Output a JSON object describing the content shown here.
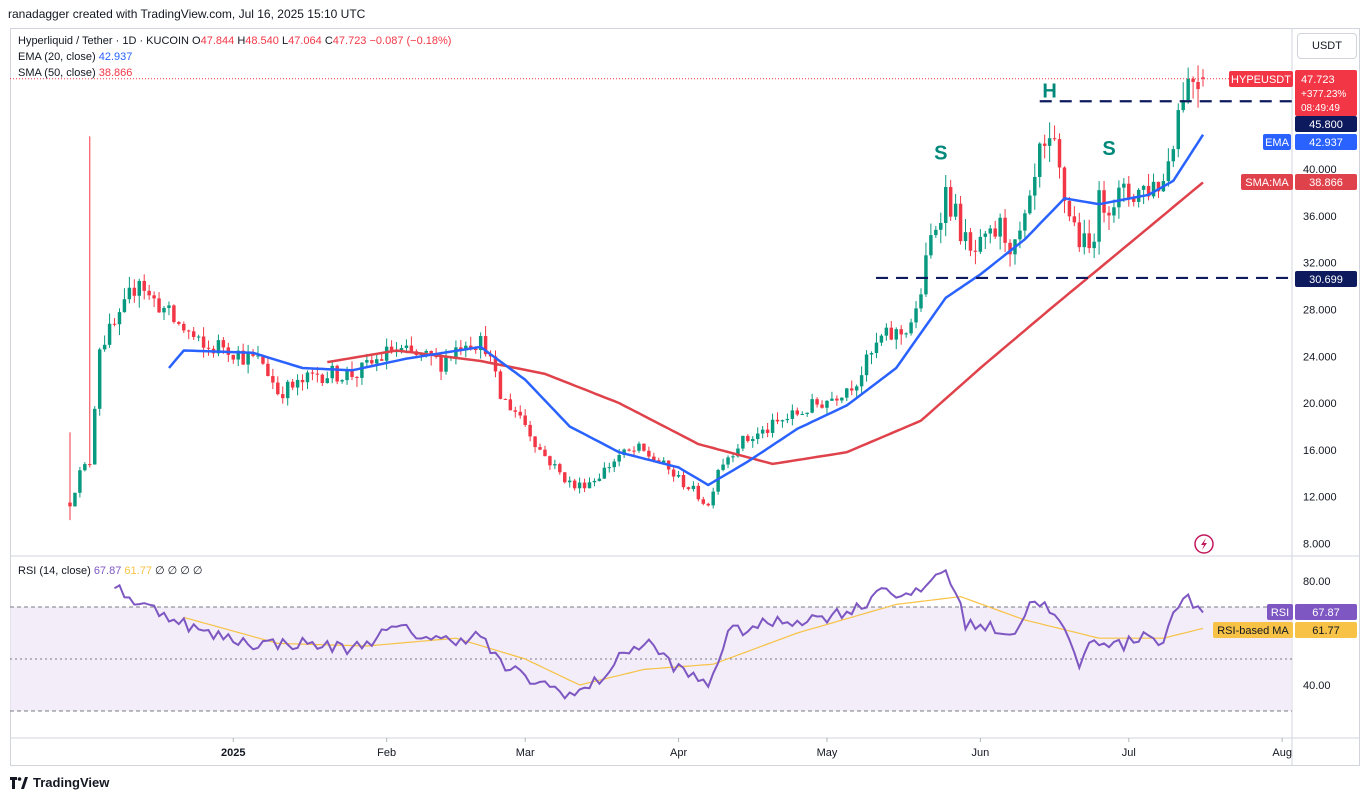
{
  "header": {
    "credit": "ranadagger created with TradingView.com, Jul 16, 2025 15:10 UTC"
  },
  "legend": {
    "symbol": "Hyperliquid / Tether · 1D · KUCOIN",
    "o_label": "O",
    "o": "47.844",
    "h_label": "H",
    "h": "48.540",
    "l_label": "L",
    "l": "47.064",
    "c_label": "C",
    "c": "47.723",
    "change": "−0.087 (−0.18%)",
    "ema_label": "EMA (20, close)",
    "ema_value": "42.937",
    "sma_label": "SMA (50, close)",
    "sma_value": "38.866",
    "rsi_label": "RSI (14, close)",
    "rsi_value": "67.87",
    "rsi_ma_value": "61.77",
    "rsi_extra": "∅ ∅ ∅ ∅"
  },
  "currency_button": "USDT",
  "price_axis": {
    "ticks": [
      "8.000",
      "12.000",
      "16.000",
      "20.000",
      "24.000",
      "28.000",
      "32.000",
      "36.000",
      "40.000"
    ],
    "labels": {
      "symbol_tag": "HYPEUSDT",
      "price": "47.723",
      "pct": "+377.23%",
      "countdown": "08:49:49",
      "resistance": "45.800",
      "ema_tag": "EMA",
      "ema": "42.937",
      "sma_tag": "SMA:MA",
      "sma": "38.866",
      "support": "30.699"
    }
  },
  "rsi_axis": {
    "ticks": [
      "80.00",
      "40.00"
    ],
    "rsi_tag": "RSI",
    "rsi": "67.87",
    "ma_tag": "RSI-based MA",
    "ma": "61.77"
  },
  "time_axis": [
    "2025",
    "Feb",
    "Mar",
    "Apr",
    "May",
    "Jun",
    "Jul",
    "Aug"
  ],
  "annotations": {
    "left_shoulder": "S",
    "head": "H",
    "right_shoulder": "S"
  },
  "colors": {
    "up": "#089981",
    "down": "#f23645",
    "ema": "#2962ff",
    "sma": "#e0424b",
    "rsi": "#7e57c2",
    "rsi_ma": "#f7c245",
    "band": "#ede7f6",
    "dash": "#0d1b5e",
    "annotation": "#00897b"
  },
  "footer": {
    "brand": "TradingView"
  },
  "chart_data": {
    "type": "candlestick",
    "interval": "1D",
    "x_range": [
      "2024-11-29",
      "2025-07-16"
    ],
    "ylim": [
      7.0,
      50.0
    ],
    "price_keypoints": [
      [
        "2024-11-29",
        11.5
      ],
      [
        "2024-12-01",
        14.0
      ],
      [
        "2024-12-03",
        15.0
      ],
      [
        "2024-12-05",
        25.0
      ],
      [
        "2024-12-07",
        26.0
      ],
      [
        "2024-12-09",
        27.0
      ],
      [
        "2024-12-11",
        29.0
      ],
      [
        "2024-12-13",
        31.0
      ],
      [
        "2024-12-15",
        29.0
      ],
      [
        "2024-12-17",
        28.5
      ],
      [
        "2024-12-20",
        27.0
      ],
      [
        "2024-12-23",
        26.0
      ],
      [
        "2024-12-26",
        24.5
      ],
      [
        "2024-12-30",
        25.0
      ],
      [
        "2025-01-03",
        24.0
      ],
      [
        "2025-01-07",
        23.5
      ],
      [
        "2025-01-10",
        21.0
      ],
      [
        "2025-01-14",
        21.5
      ],
      [
        "2025-01-18",
        22.5
      ],
      [
        "2025-01-22",
        22.5
      ],
      [
        "2025-01-26",
        22.5
      ],
      [
        "2025-02-02",
        24.5
      ],
      [
        "2025-02-07",
        24.0
      ],
      [
        "2025-02-12",
        23.5
      ],
      [
        "2025-02-17",
        25.5
      ],
      [
        "2025-02-21",
        25.0
      ],
      [
        "2025-02-24",
        20.5
      ],
      [
        "2025-02-28",
        19.0
      ],
      [
        "2025-03-04",
        16.0
      ],
      [
        "2025-03-08",
        14.0
      ],
      [
        "2025-03-11",
        12.8
      ],
      [
        "2025-03-15",
        13.5
      ],
      [
        "2025-03-20",
        15.5
      ],
      [
        "2025-03-24",
        16.0
      ],
      [
        "2025-03-28",
        15.0
      ],
      [
        "2025-04-01",
        13.5
      ],
      [
        "2025-04-04",
        12.5
      ],
      [
        "2025-04-07",
        11.2
      ],
      [
        "2025-04-09",
        14.5
      ],
      [
        "2025-04-13",
        16.5
      ],
      [
        "2025-04-18",
        17.5
      ],
      [
        "2025-04-22",
        18.5
      ],
      [
        "2025-04-27",
        19.5
      ],
      [
        "2025-05-02",
        20.5
      ],
      [
        "2025-05-07",
        22.0
      ],
      [
        "2025-05-12",
        25.5
      ],
      [
        "2025-05-16",
        26.0
      ],
      [
        "2025-05-19",
        27.5
      ],
      [
        "2025-05-22",
        34.0
      ],
      [
        "2025-05-25",
        38.0
      ],
      [
        "2025-05-27",
        36.0
      ],
      [
        "2025-05-30",
        32.5
      ],
      [
        "2025-06-02",
        33.5
      ],
      [
        "2025-06-05",
        35.0
      ],
      [
        "2025-06-08",
        33.0
      ],
      [
        "2025-06-11",
        36.5
      ],
      [
        "2025-06-13",
        41.0
      ],
      [
        "2025-06-16",
        41.5
      ],
      [
        "2025-06-18",
        37.5
      ],
      [
        "2025-06-21",
        34.0
      ],
      [
        "2025-06-23",
        33.0
      ],
      [
        "2025-06-25",
        37.0
      ],
      [
        "2025-06-28",
        37.5
      ],
      [
        "2025-07-02",
        38.0
      ],
      [
        "2025-07-05",
        38.5
      ],
      [
        "2025-07-08",
        39.0
      ],
      [
        "2025-07-10",
        43.0
      ],
      [
        "2025-07-12",
        47.0
      ],
      [
        "2025-07-14",
        48.0
      ],
      [
        "2025-07-16",
        47.723
      ]
    ],
    "ema20_keypoints": [
      [
        "2024-12-19",
        23.0
      ],
      [
        "2024-12-22",
        24.5
      ],
      [
        "2025-01-05",
        24.3
      ],
      [
        "2025-01-15",
        23.0
      ],
      [
        "2025-01-25",
        22.8
      ],
      [
        "2025-02-05",
        23.8
      ],
      [
        "2025-02-20",
        24.8
      ],
      [
        "2025-03-01",
        22.0
      ],
      [
        "2025-03-10",
        18.0
      ],
      [
        "2025-03-20",
        15.8
      ],
      [
        "2025-04-01",
        14.5
      ],
      [
        "2025-04-07",
        13.0
      ],
      [
        "2025-04-15",
        15.0
      ],
      [
        "2025-04-25",
        17.8
      ],
      [
        "2025-05-05",
        19.8
      ],
      [
        "2025-05-15",
        23.0
      ],
      [
        "2025-05-25",
        29.0
      ],
      [
        "2025-06-01",
        31.0
      ],
      [
        "2025-06-10",
        34.0
      ],
      [
        "2025-06-18",
        37.5
      ],
      [
        "2025-06-25",
        37.0
      ],
      [
        "2025-07-05",
        37.8
      ],
      [
        "2025-07-10",
        39.0
      ],
      [
        "2025-07-16",
        42.937
      ]
    ],
    "sma50_keypoints": [
      [
        "2025-01-20",
        23.5
      ],
      [
        "2025-02-03",
        24.5
      ],
      [
        "2025-02-20",
        23.6
      ],
      [
        "2025-03-05",
        22.5
      ],
      [
        "2025-03-20",
        20.0
      ],
      [
        "2025-04-05",
        16.5
      ],
      [
        "2025-04-20",
        14.8
      ],
      [
        "2025-05-05",
        15.8
      ],
      [
        "2025-05-20",
        18.5
      ],
      [
        "2025-06-01",
        23.0
      ],
      [
        "2025-06-15",
        28.0
      ],
      [
        "2025-06-25",
        31.5
      ],
      [
        "2025-07-05",
        35.0
      ],
      [
        "2025-07-16",
        38.866
      ]
    ],
    "rsi_keypoints": [
      [
        "2024-12-08",
        79
      ],
      [
        "2024-12-12",
        72
      ],
      [
        "2024-12-16",
        69
      ],
      [
        "2024-12-20",
        66
      ],
      [
        "2024-12-26",
        60
      ],
      [
        "2025-01-05",
        56
      ],
      [
        "2025-01-15",
        56
      ],
      [
        "2025-01-25",
        54
      ],
      [
        "2025-02-03",
        62
      ],
      [
        "2025-02-12",
        57
      ],
      [
        "2025-02-20",
        59
      ],
      [
        "2025-02-24",
        48
      ],
      [
        "2025-03-02",
        42
      ],
      [
        "2025-03-08",
        38
      ],
      [
        "2025-03-11",
        36
      ],
      [
        "2025-03-16",
        42
      ],
      [
        "2025-03-22",
        54
      ],
      [
        "2025-03-26",
        56
      ],
      [
        "2025-04-01",
        46
      ],
      [
        "2025-04-07",
        40
      ],
      [
        "2025-04-11",
        60
      ],
      [
        "2025-04-20",
        64
      ],
      [
        "2025-04-30",
        66
      ],
      [
        "2025-05-08",
        70
      ],
      [
        "2025-05-12",
        78
      ],
      [
        "2025-05-18",
        73
      ],
      [
        "2025-05-23",
        82
      ],
      [
        "2025-05-25",
        85
      ],
      [
        "2025-05-29",
        64
      ],
      [
        "2025-06-03",
        62
      ],
      [
        "2025-06-08",
        60
      ],
      [
        "2025-06-12",
        74
      ],
      [
        "2025-06-17",
        64
      ],
      [
        "2025-06-21",
        48
      ],
      [
        "2025-06-24",
        58
      ],
      [
        "2025-06-30",
        55
      ],
      [
        "2025-07-04",
        60
      ],
      [
        "2025-07-08",
        57
      ],
      [
        "2025-07-12",
        75
      ],
      [
        "2025-07-14",
        70
      ],
      [
        "2025-07-16",
        67.87
      ]
    ],
    "rsi_ma_keypoints": [
      [
        "2024-12-22",
        66
      ],
      [
        "2025-01-10",
        56
      ],
      [
        "2025-01-28",
        55
      ],
      [
        "2025-02-15",
        58
      ],
      [
        "2025-03-01",
        50
      ],
      [
        "2025-03-12",
        40
      ],
      [
        "2025-03-25",
        46
      ],
      [
        "2025-04-08",
        48
      ],
      [
        "2025-04-25",
        60
      ],
      [
        "2025-05-15",
        71
      ],
      [
        "2025-05-28",
        74
      ],
      [
        "2025-06-10",
        65
      ],
      [
        "2025-06-25",
        58
      ],
      [
        "2025-07-08",
        58
      ],
      [
        "2025-07-16",
        61.77
      ]
    ],
    "rsi_ylim": [
      20,
      90
    ],
    "rsi_bands": [
      70,
      50,
      30
    ],
    "levels": {
      "resistance": 45.8,
      "support": 30.699
    }
  }
}
